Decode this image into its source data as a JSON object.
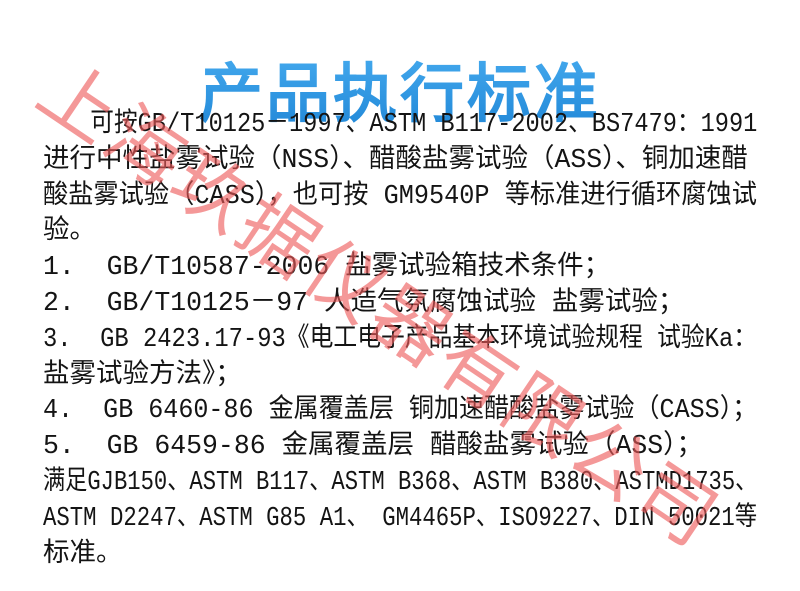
{
  "title": "产品执行标准",
  "watermark": {
    "text": "上海玖据仪器有限公司"
  },
  "body": {
    "lines": [
      {
        "text": "可按GB/T10125－1997、ASTM B117-2002、BS7479：1991",
        "indent": true
      },
      {
        "text": "进行中性盐雾试验（NSS）、醋酸盐雾试验（ASS）、铜加速醋",
        "indent": false
      },
      {
        "text": "酸盐雾试验（CASS），也可按 GM9540P 等标准进行循环腐蚀试",
        "indent": false
      },
      {
        "text": "验。",
        "indent": false
      },
      {
        "text": "1.  GB/T10587-2006 盐雾试验箱技术条件；",
        "indent": false
      },
      {
        "text": "2.  GB/T10125－97 人造气氛腐蚀试验 盐雾试验；",
        "indent": false
      },
      {
        "text": "3.  GB 2423.17-93《电工电子产品基本环境试验规程 试验Ka：",
        "indent": false
      },
      {
        "text": "盐雾试验方法》；",
        "indent": false
      },
      {
        "text": "4.  GB 6460-86 金属覆盖层 铜加速醋酸盐雾试验（CASS）；",
        "indent": false
      },
      {
        "text": "5.  GB 6459-86 金属覆盖层 醋酸盐雾试验（ASS）；",
        "indent": false
      },
      {
        "text": "满足GJB150、ASTM B117、ASTM B368、ASTM B380、ASTMD1735、",
        "indent": false
      },
      {
        "text": "ASTM D2247、ASTM G85 A1、 GM4465P、ISO9227、DIN 50021等",
        "indent": false
      },
      {
        "text": "标准。",
        "indent": false
      }
    ]
  },
  "colors": {
    "title_top": "#45aaee",
    "title_bottom": "#1e85d6",
    "body_text": "#141414",
    "watermark": "#ee5a5a",
    "background": "#ffffff"
  }
}
